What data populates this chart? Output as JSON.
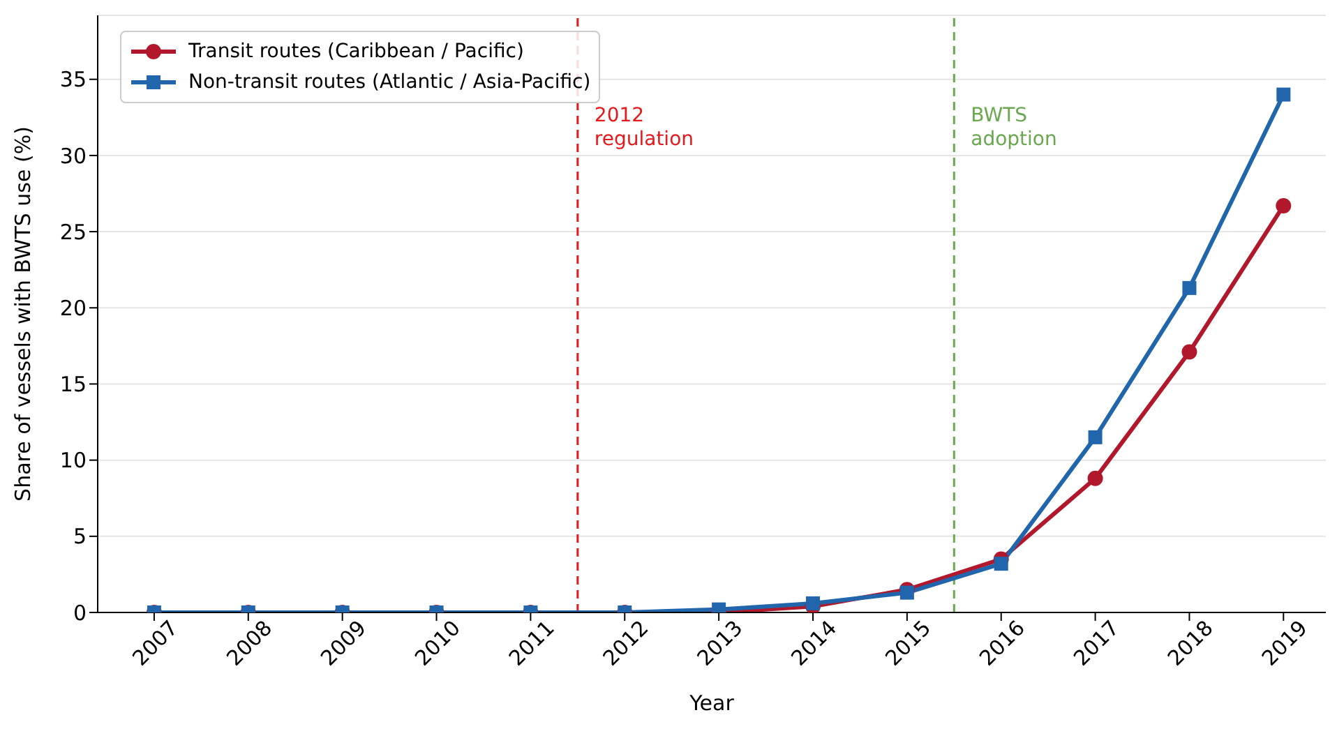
{
  "chart_data": {
    "type": "line",
    "xlabel": "Year",
    "ylabel": "Share of vessels with BWTS use (%)",
    "x": [
      2007,
      2008,
      2009,
      2010,
      2011,
      2012,
      2013,
      2014,
      2015,
      2016,
      2017,
      2018,
      2019
    ],
    "series": [
      {
        "name": "Transit routes (Caribbean / Pacific)",
        "color": "#b2182b",
        "marker": "circle",
        "values": [
          0,
          0,
          0,
          0,
          0,
          0,
          0,
          0.4,
          1.5,
          3.5,
          8.8,
          17.1,
          26.7
        ]
      },
      {
        "name": "Non-transit routes (Atlantic / Asia-Pacific)",
        "color": "#2166ac",
        "marker": "square",
        "values": [
          0,
          0,
          0,
          0,
          0,
          0,
          0.2,
          0.6,
          1.3,
          3.2,
          11.5,
          21.3,
          34.0
        ]
      }
    ],
    "xlim": [
      2006.4,
      2019.45
    ],
    "xticks": [
      2007,
      2008,
      2009,
      2010,
      2011,
      2012,
      2013,
      2014,
      2015,
      2016,
      2017,
      2018,
      2019
    ],
    "ylim": [
      0,
      39.2
    ],
    "yticks": [
      0,
      5,
      10,
      15,
      20,
      25,
      30,
      35
    ],
    "grid": "y",
    "legend": "top left",
    "line_style": "solid",
    "ref_lines": [
      {
        "axis": "x",
        "value": 2011.5,
        "label": "2012\nregulation",
        "color": "#e41a1c",
        "line_style": "dashed"
      },
      {
        "axis": "x",
        "value": 2015.5,
        "label": "BWTS\nadoption",
        "color": "#6aa84f",
        "line_style": "dashed"
      }
    ]
  }
}
